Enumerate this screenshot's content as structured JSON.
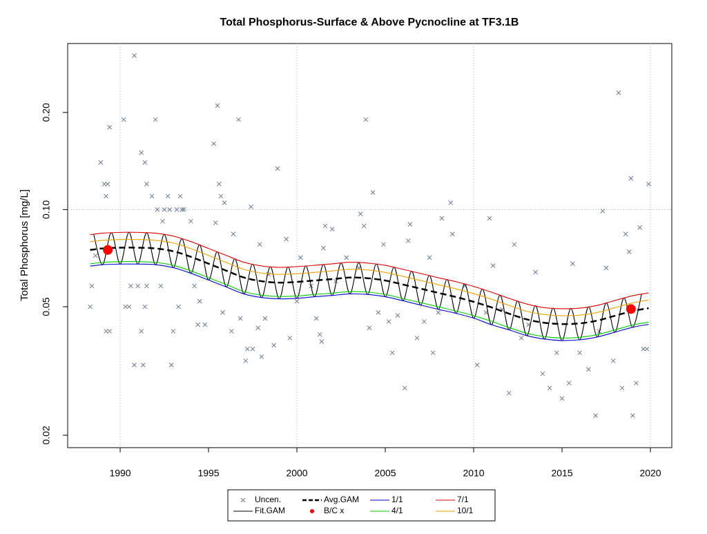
{
  "chart_data": {
    "type": "line",
    "title": "Total Phosphorus-Surface & Above Pycnocline at TF3.1B",
    "y_label": "Total Phosphorus [mg/L]",
    "log_y": true,
    "xlim": [
      1987.03,
      2021.21
    ],
    "ylim": [
      0.0183,
      0.327
    ],
    "xticks": [
      1990,
      1995,
      2000,
      2005,
      2010,
      2015,
      2020
    ],
    "yticks": [
      0.02,
      0.05,
      {
        "value": 0.1,
        "label": "0.10"
      },
      {
        "value": 0.2,
        "label": "0.20"
      }
    ],
    "grid": {
      "x": [
        1990,
        2000,
        2010,
        2020
      ],
      "y": [
        0.1
      ]
    },
    "legend": "bottom",
    "series": [
      {
        "name": "Uncen.",
        "kind": "x-mark",
        "color": "#6b7a8f",
        "x": [
          1988.3,
          1988.4,
          1988.6,
          1988.9,
          1989.1,
          1989.2,
          1989.3,
          1989.4,
          1989.2,
          1989.4,
          1990.2,
          1990.3,
          1990.5,
          1990.6,
          1990.8,
          1990.8,
          1991.0,
          1991.2,
          1991.2,
          1991.3,
          1991.4,
          1991.5,
          1991.4,
          1991.5,
          1992.0,
          1991.8,
          1992.1,
          1992.3,
          1992.4,
          1992.5,
          1992.7,
          1992.8,
          1992.9,
          1993.0,
          1993.2,
          1993.3,
          1993.4,
          1993.5,
          1993.6,
          1994.0,
          1994.2,
          1994.4,
          1994.5,
          1994.8,
          1995.3,
          1995.4,
          1995.5,
          1995.6,
          1995.7,
          1995.9,
          1995.8,
          1996.3,
          1996.4,
          1996.7,
          1996.8,
          1997.1,
          1997.2,
          1997.4,
          1997.5,
          1997.8,
          1997.9,
          1998.0,
          1998.2,
          1998.4,
          1998.7,
          1998.9,
          1999.4,
          1999.6,
          2000.0,
          2000.2,
          2000.8,
          2001.1,
          2001.3,
          2001.4,
          2001.5,
          2001.6,
          2002.0,
          2002.2,
          2002.8,
          2003.5,
          2003.6,
          2003.8,
          2003.9,
          2004.1,
          2004.3,
          2004.6,
          2004.9,
          2005.2,
          2005.4,
          2005.7,
          2006.1,
          2006.3,
          2006.4,
          2006.8,
          2007.2,
          2007.5,
          2007.7,
          2008.0,
          2008.2,
          2008.7,
          2008.8,
          2009.5,
          2010.2,
          2010.7,
          2010.9,
          2011.1,
          2011.6,
          2012.0,
          2012.3,
          2012.7,
          2013.1,
          2013.5,
          2013.9,
          2014.3,
          2014.7,
          2015.0,
          2015.4,
          2015.6,
          2016.0,
          2016.5,
          2016.9,
          2017.1,
          2017.3,
          2017.5,
          2017.9,
          2018.2,
          2018.4,
          2018.6,
          2018.8,
          2018.9,
          2019.0,
          2019.2,
          2019.4,
          2019.6,
          2019.8,
          2019.9
        ],
        "values": [
          0.05,
          0.058,
          0.072,
          0.14,
          0.12,
          0.11,
          0.12,
          0.18,
          0.042,
          0.042,
          0.19,
          0.05,
          0.05,
          0.058,
          0.3,
          0.033,
          0.058,
          0.15,
          0.042,
          0.033,
          0.14,
          0.12,
          0.05,
          0.058,
          0.19,
          0.11,
          0.1,
          0.058,
          0.092,
          0.1,
          0.11,
          0.1,
          0.033,
          0.042,
          0.1,
          0.05,
          0.11,
          0.1,
          0.1,
          0.092,
          0.058,
          0.044,
          0.052,
          0.044,
          0.16,
          0.091,
          0.21,
          0.12,
          0.11,
          0.105,
          0.048,
          0.042,
          0.084,
          0.19,
          0.046,
          0.034,
          0.037,
          0.102,
          0.037,
          0.043,
          0.078,
          0.035,
          0.046,
          0.063,
          0.038,
          0.134,
          0.081,
          0.04,
          0.052,
          0.071,
          0.058,
          0.046,
          0.041,
          0.039,
          0.076,
          0.089,
          0.087,
          0.06,
          0.071,
          0.066,
          0.097,
          0.089,
          0.19,
          0.043,
          0.113,
          0.048,
          0.078,
          0.045,
          0.036,
          0.047,
          0.028,
          0.08,
          0.09,
          0.04,
          0.045,
          0.071,
          0.036,
          0.048,
          0.094,
          0.105,
          0.084,
          0.058,
          0.033,
          0.048,
          0.094,
          0.067,
          0.049,
          0.027,
          0.078,
          0.04,
          0.044,
          0.064,
          0.031,
          0.028,
          0.036,
          0.026,
          0.029,
          0.068,
          0.036,
          0.032,
          0.023,
          0.042,
          0.099,
          0.066,
          0.034,
          0.23,
          0.028,
          0.084,
          0.074,
          0.125,
          0.023,
          0.029,
          0.088,
          0.037,
          0.037,
          0.12
        ]
      },
      {
        "name": "Fit.GAM",
        "kind": "line",
        "color": "#000000",
        "x": [
          1988.5,
          1989,
          1989.5,
          1990,
          1990.5,
          1991,
          1991.5,
          1992,
          1992.5,
          1993,
          1993.5,
          1994,
          1994.5,
          1995,
          1995.5,
          1996,
          1996.5,
          1997,
          1997.5,
          1998,
          1998.5,
          1999,
          1999.5,
          2000,
          2000.5,
          2001,
          2001.5,
          2002,
          2002.5,
          2003,
          2003.5,
          2004,
          2004.5,
          2005,
          2005.5,
          2006,
          2006.5,
          2007,
          2007.5,
          2008,
          2008.5,
          2009,
          2009.5,
          2010,
          2010.5,
          2011,
          2011.5,
          2012,
          2012.5,
          2013,
          2013.5,
          2014,
          2014.5,
          2015,
          2015.5,
          2016,
          2016.5,
          2017,
          2017.5,
          2018,
          2018.5,
          2019,
          2019.5
        ],
        "values": [
          0.084,
          0.0675,
          0.0848,
          0.0678,
          0.085,
          0.0678,
          0.0848,
          0.0675,
          0.0837,
          0.0661,
          0.0812,
          0.0635,
          0.0777,
          0.0605,
          0.074,
          0.0576,
          0.0704,
          0.0548,
          0.0678,
          0.0534,
          0.0665,
          0.0529,
          0.0664,
          0.0531,
          0.0669,
          0.0537,
          0.0676,
          0.0542,
          0.0683,
          0.0548,
          0.0685,
          0.0546,
          0.0678,
          0.0537,
          0.0663,
          0.0522,
          0.0644,
          0.0506,
          0.0625,
          0.0491,
          0.0607,
          0.0477,
          0.0588,
          0.0461,
          0.0567,
          0.044,
          0.0543,
          0.0424,
          0.0521,
          0.0407,
          0.0504,
          0.0397,
          0.0495,
          0.0393,
          0.0494,
          0.0395,
          0.05,
          0.0403,
          0.0514,
          0.0417,
          0.0532,
          0.0432,
          0.0547
        ]
      },
      {
        "name": "Avg.GAM",
        "kind": "dash",
        "color": "#000000",
        "x": [
          1988.3,
          1989,
          1990,
          1991,
          1992,
          1993,
          1994,
          1995,
          1996,
          1997,
          1998,
          1999,
          2000,
          2001,
          2002,
          2003,
          2004,
          2005,
          2006,
          2007,
          2008,
          2009,
          2010,
          2011,
          2012,
          2013,
          2014,
          2015,
          2016,
          2017,
          2018,
          2019,
          2019.9
        ],
        "values": [
          0.075,
          0.0758,
          0.0762,
          0.0762,
          0.0758,
          0.0743,
          0.0714,
          0.068,
          0.0647,
          0.0616,
          0.06,
          0.0594,
          0.0597,
          0.0603,
          0.0609,
          0.0616,
          0.0613,
          0.0603,
          0.0586,
          0.0569,
          0.0552,
          0.0536,
          0.0518,
          0.0498,
          0.0476,
          0.0457,
          0.0446,
          0.0442,
          0.0444,
          0.0453,
          0.0469,
          0.0485,
          0.0495
        ]
      },
      {
        "name": "B/C x",
        "kind": "dot",
        "color": "#ff0000",
        "x": [
          1989.3,
          2018.9
        ],
        "values": [
          0.075,
          0.0492
        ]
      },
      {
        "name": "1/1",
        "kind": "line",
        "color": "#0000cd",
        "x": [
          1988.3,
          1989,
          1990,
          1991,
          1992,
          1993,
          1994,
          1995,
          1996,
          1997,
          1998,
          1999,
          2000,
          2001,
          2002,
          2003,
          2004,
          2005,
          2006,
          2007,
          2008,
          2009,
          2010,
          2011,
          2012,
          2013,
          2014,
          2015,
          2016,
          2017,
          2018,
          2019,
          2019.9
        ],
        "values": [
          0.0668,
          0.0675,
          0.0678,
          0.0678,
          0.0675,
          0.0661,
          0.0635,
          0.0605,
          0.0576,
          0.0548,
          0.0534,
          0.0529,
          0.0531,
          0.0537,
          0.0542,
          0.0548,
          0.0546,
          0.0537,
          0.0522,
          0.0506,
          0.0491,
          0.0477,
          0.0461,
          0.044,
          0.0424,
          0.0407,
          0.0397,
          0.0393,
          0.0395,
          0.0403,
          0.0417,
          0.0432,
          0.0441
        ]
      },
      {
        "name": "4/1",
        "kind": "line",
        "color": "#00cc00",
        "x": [
          1988.3,
          1989,
          1990,
          1991,
          1992,
          1993,
          1994,
          1995,
          1996,
          1997,
          1998,
          1999,
          2000,
          2001,
          2002,
          2003,
          2004,
          2005,
          2006,
          2007,
          2008,
          2009,
          2010,
          2011,
          2012,
          2013,
          2014,
          2015,
          2016,
          2017,
          2018,
          2019,
          2019.9
        ],
        "values": [
          0.0679,
          0.0686,
          0.069,
          0.069,
          0.0686,
          0.0672,
          0.0646,
          0.0615,
          0.0586,
          0.0557,
          0.0543,
          0.0538,
          0.054,
          0.0546,
          0.0551,
          0.0557,
          0.0555,
          0.0546,
          0.053,
          0.0515,
          0.05,
          0.0485,
          0.0469,
          0.0451,
          0.0431,
          0.0414,
          0.0404,
          0.04,
          0.0402,
          0.041,
          0.0424,
          0.0439,
          0.0448
        ]
      },
      {
        "name": "7/1",
        "kind": "line",
        "color": "#dd0000",
        "x": [
          1988.3,
          1989,
          1990,
          1991,
          1992,
          1993,
          1994,
          1995,
          1996,
          1997,
          1998,
          1999,
          2000,
          2001,
          2002,
          2003,
          2004,
          2005,
          2006,
          2007,
          2008,
          2009,
          2010,
          2011,
          2012,
          2013,
          2014,
          2015,
          2016,
          2017,
          2018,
          2019,
          2019.9
        ],
        "values": [
          0.0836,
          0.0845,
          0.085,
          0.085,
          0.0845,
          0.0828,
          0.0796,
          0.0758,
          0.0721,
          0.0687,
          0.0669,
          0.0662,
          0.0666,
          0.0672,
          0.0679,
          0.0687,
          0.0683,
          0.0672,
          0.0653,
          0.0634,
          0.0615,
          0.0598,
          0.0578,
          0.0555,
          0.0531,
          0.051,
          0.0497,
          0.0493,
          0.0495,
          0.0505,
          0.0523,
          0.0541,
          0.0552
        ]
      },
      {
        "name": "10/1",
        "kind": "line",
        "color": "#f0a000",
        "x": [
          1988.3,
          1989,
          1990,
          1991,
          1992,
          1993,
          1994,
          1995,
          1996,
          1997,
          1998,
          1999,
          2000,
          2001,
          2002,
          2003,
          2004,
          2005,
          2006,
          2007,
          2008,
          2009,
          2010,
          2011,
          2012,
          2013,
          2014,
          2015,
          2016,
          2017,
          2018,
          2019,
          2019.9
        ],
        "values": [
          0.0795,
          0.0803,
          0.0808,
          0.0808,
          0.0803,
          0.0788,
          0.0757,
          0.0721,
          0.0686,
          0.0653,
          0.0636,
          0.063,
          0.0633,
          0.0639,
          0.0646,
          0.0653,
          0.065,
          0.0639,
          0.0621,
          0.0603,
          0.0585,
          0.0568,
          0.0549,
          0.0528,
          0.0505,
          0.0484,
          0.0473,
          0.0469,
          0.0471,
          0.048,
          0.0497,
          0.0514,
          0.0525
        ]
      }
    ]
  }
}
